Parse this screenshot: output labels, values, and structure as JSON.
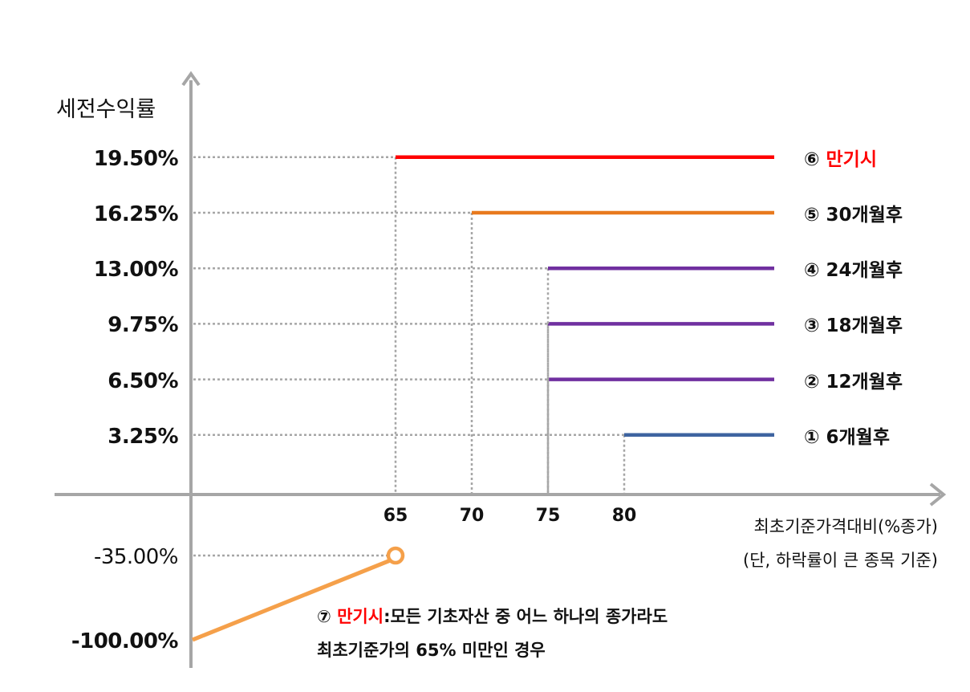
{
  "chart_data": {
    "type": "line",
    "ylabel": "세전수익률",
    "xlabel": "최초기준가격대비(%종가)",
    "xlabel_note": "(단, 하락률이 큰 종목 기준)",
    "x_ticks": [
      "65",
      "70",
      "75",
      "80"
    ],
    "y_ticks": [
      "19.50%",
      "16.25%",
      "13.00%",
      "9.75%",
      "6.50%",
      "3.25%",
      "-35.00%",
      "-100.00%"
    ],
    "grid": false,
    "legend_placement": "right",
    "series": [
      {
        "marker": "①",
        "name": "6개월후",
        "x_from": 80,
        "y": 3.25,
        "color": "#3e64a0"
      },
      {
        "marker": "②",
        "name": "12개월후",
        "x_from": 75,
        "y": 6.5,
        "color": "#7030a0"
      },
      {
        "marker": "③",
        "name": "18개월후",
        "x_from": 75,
        "y": 9.75,
        "color": "#7030a0"
      },
      {
        "marker": "④",
        "name": "24개월후",
        "x_from": 75,
        "y": 13.0,
        "color": "#7030a0"
      },
      {
        "marker": "⑤",
        "name": "30개월후",
        "x_from": 70,
        "y": 16.25,
        "color": "#e87a1e"
      },
      {
        "marker": "⑥",
        "name": "만기시",
        "x_from": 65,
        "y": 19.5,
        "color": "#ff0000",
        "name_color": "#ff0000"
      }
    ],
    "loss_line": {
      "points": [
        {
          "x": 0,
          "y": -100
        },
        {
          "x": 65,
          "y": -35
        }
      ],
      "open_marker_at": {
        "x": 65,
        "y": -35
      },
      "color": "#f5a04a"
    },
    "annotation": {
      "marker": "⑦",
      "highlight": "만기시",
      "highlight_color": "#ff0000",
      "line1": ":모든 기초자산 중 어느 하나의 종가라도",
      "line2": "최초기준가의 65% 미만인 경우"
    },
    "axis_color": "#a6a6a6",
    "guide_color": "#a6a6a6"
  }
}
